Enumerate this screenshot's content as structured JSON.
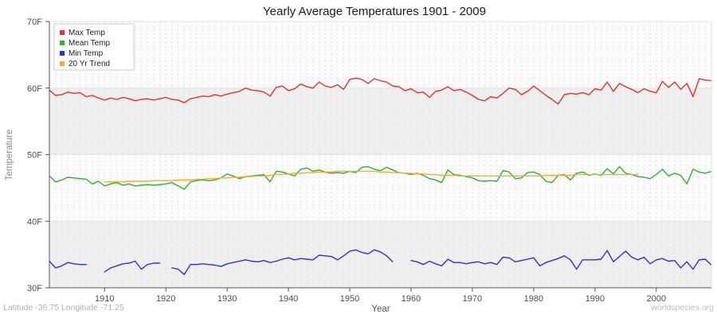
{
  "header": {
    "title": "Yearly Average Temperatures 1901 - 2009"
  },
  "axes": {
    "y_label": "Temperature",
    "x_label": "Year",
    "y_ticks": [
      {
        "label": "30F",
        "value": 30
      },
      {
        "label": "40F",
        "value": 40
      },
      {
        "label": "50F",
        "value": 50
      },
      {
        "label": "60F",
        "value": 60
      },
      {
        "label": "70F",
        "value": 70
      }
    ],
    "x_ticks": [
      1910,
      1920,
      1930,
      1940,
      1950,
      1960,
      1970,
      1980,
      1990,
      2000
    ]
  },
  "footer": {
    "left": "Latitude -36.75 Longitude -71.25",
    "right": "worldspecies.org"
  },
  "chart_data": {
    "type": "line",
    "title": "Yearly Average Temperatures 1901 - 2009",
    "xlabel": "Year",
    "ylabel": "Temperature",
    "x_start": 1901,
    "x_end": 2009,
    "ylim": [
      30,
      70
    ],
    "grid": "vertical-dashed-per-year",
    "legend_position": "top-left",
    "background_bands": {
      "dark": "#efefef",
      "light": "#fbfbfb"
    },
    "series": [
      {
        "name": "Max Temp",
        "color": "#e53030",
        "values": [
          59.7,
          58.9,
          59.0,
          59.4,
          59.2,
          59.3,
          58.7,
          58.9,
          58.5,
          58.2,
          58.5,
          58.3,
          58.6,
          58.4,
          58.1,
          58.3,
          58.4,
          58.2,
          58.4,
          58.6,
          58.3,
          58.2,
          57.8,
          58.4,
          58.6,
          58.8,
          58.7,
          59.0,
          58.8,
          59.1,
          59.3,
          59.5,
          60.0,
          59.7,
          59.6,
          59.4,
          58.8,
          60.1,
          60.3,
          59.6,
          59.9,
          60.6,
          60.2,
          60.0,
          60.9,
          60.3,
          60.1,
          60.5,
          59.8,
          61.3,
          61.5,
          61.3,
          60.7,
          61.4,
          61.1,
          60.9,
          60.3,
          60.2,
          59.6,
          59.9,
          59.3,
          59.4,
          58.6,
          59.5,
          59.7,
          60.2,
          59.6,
          59.8,
          59.4,
          58.9,
          58.3,
          58.1,
          58.7,
          58.5,
          59.2,
          60.0,
          59.8,
          59.0,
          59.5,
          60.3,
          59.6,
          58.9,
          58.3,
          57.6,
          59.0,
          59.2,
          59.1,
          59.3,
          59.0,
          59.9,
          59.7,
          60.9,
          59.5,
          60.7,
          60.2,
          59.8,
          59.3,
          59.9,
          59.5,
          59.3,
          61.0,
          60.1,
          60.9,
          59.8,
          60.7,
          58.7,
          61.4,
          61.2,
          61.1
        ]
      },
      {
        "name": "Mean Temp",
        "color": "#2db32d",
        "values": [
          46.8,
          45.9,
          46.2,
          46.6,
          46.5,
          46.4,
          46.3,
          45.6,
          46.0,
          45.3,
          45.6,
          45.8,
          45.4,
          45.6,
          45.3,
          45.4,
          45.5,
          45.4,
          45.5,
          45.6,
          45.8,
          45.3,
          44.8,
          45.9,
          46.1,
          46.2,
          46.1,
          46.2,
          46.5,
          47.1,
          46.8,
          46.4,
          46.7,
          46.8,
          46.9,
          47.0,
          45.9,
          47.5,
          47.4,
          47.1,
          46.8,
          47.8,
          48.0,
          47.5,
          47.7,
          47.4,
          47.2,
          47.3,
          47.2,
          47.5,
          47.3,
          48.1,
          48.2,
          47.8,
          47.6,
          48.1,
          47.7,
          47.3,
          47.2,
          47.0,
          47.2,
          46.9,
          46.4,
          46.2,
          45.8,
          47.7,
          47.0,
          46.9,
          46.7,
          46.5,
          46.1,
          46.0,
          46.1,
          46.0,
          47.6,
          47.4,
          46.4,
          46.5,
          47.3,
          47.4,
          47.0,
          46.0,
          45.8,
          46.9,
          47.0,
          46.2,
          47.2,
          47.4,
          46.9,
          47.1,
          46.9,
          47.9,
          47.1,
          48.2,
          47.2,
          47.0,
          46.7,
          46.6,
          46.4,
          47.0,
          47.8,
          46.8,
          47.2,
          46.9,
          45.6,
          47.8,
          47.4,
          47.2,
          47.5
        ]
      },
      {
        "name": "Min Temp",
        "color": "#3030d9",
        "values": [
          34.0,
          33.0,
          33.3,
          33.8,
          33.6,
          33.5,
          33.5,
          null,
          null,
          32.4,
          33.0,
          33.3,
          33.6,
          33.7,
          34.0,
          32.8,
          33.5,
          33.7,
          33.7,
          null,
          33.0,
          32.8,
          32.0,
          33.5,
          33.5,
          33.6,
          33.5,
          33.4,
          33.2,
          33.6,
          33.8,
          34.0,
          34.2,
          34.0,
          33.9,
          34.1,
          33.8,
          34.0,
          34.3,
          34.5,
          34.2,
          34.4,
          34.3,
          34.2,
          34.9,
          34.8,
          34.7,
          34.2,
          34.8,
          35.5,
          35.7,
          35.3,
          35.1,
          35.7,
          35.4,
          34.8,
          33.9,
          null,
          null,
          34.1,
          33.9,
          33.5,
          34.0,
          33.6,
          33.3,
          34.3,
          33.8,
          33.8,
          33.6,
          33.8,
          33.9,
          33.6,
          33.8,
          33.5,
          34.6,
          34.5,
          33.9,
          34.1,
          34.3,
          34.5,
          33.3,
          33.8,
          34.1,
          34.4,
          34.8,
          34.2,
          32.8,
          34.2,
          34.2,
          34.2,
          34.3,
          35.6,
          33.9,
          34.7,
          35.5,
          34.6,
          34.2,
          34.6,
          33.6,
          34.2,
          34.4,
          34.0,
          34.1,
          33.0,
          33.9,
          32.8,
          34.2,
          34.3,
          33.4
        ]
      },
      {
        "name": "20 Yr Trend",
        "color": "#ffa733",
        "values": [
          null,
          null,
          null,
          null,
          null,
          null,
          null,
          null,
          null,
          45.9,
          45.9,
          45.9,
          45.9,
          46.0,
          46.0,
          46.0,
          46.0,
          46.1,
          46.1,
          46.1,
          46.1,
          46.2,
          46.2,
          46.2,
          46.3,
          46.3,
          46.4,
          46.4,
          46.5,
          46.5,
          46.6,
          46.6,
          46.7,
          46.7,
          46.8,
          46.8,
          46.9,
          47.0,
          47.0,
          47.1,
          47.2,
          47.2,
          47.3,
          47.3,
          47.4,
          47.4,
          47.4,
          47.5,
          47.5,
          47.5,
          47.5,
          47.5,
          47.5,
          47.5,
          47.4,
          47.4,
          47.3,
          47.3,
          47.2,
          47.2,
          47.1,
          47.1,
          47.0,
          47.0,
          46.9,
          46.9,
          46.9,
          46.8,
          46.8,
          46.8,
          46.8,
          46.8,
          46.8,
          46.8,
          46.8,
          46.8,
          46.8,
          46.8,
          46.8,
          46.8,
          46.8,
          46.9,
          46.9,
          46.9,
          46.9,
          46.9,
          47.0,
          47.0,
          47.0,
          47.0,
          47.0,
          47.0,
          47.0,
          47.0,
          47.0,
          47.0,
          47.0,
          null,
          null,
          null,
          null,
          null,
          null,
          null,
          null,
          null,
          null,
          null,
          null
        ]
      }
    ]
  }
}
